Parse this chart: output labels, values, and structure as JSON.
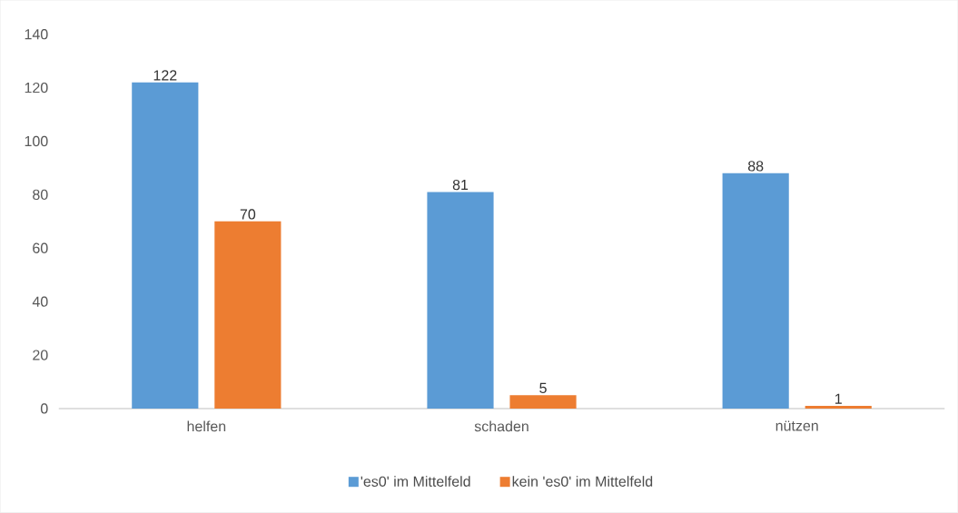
{
  "chart_data": {
    "type": "bar",
    "categories": [
      "helfen",
      "schaden",
      "nützen"
    ],
    "series": [
      {
        "name": "'es0' im Mittelfeld",
        "color": "#5b9bd5",
        "values": [
          122,
          81,
          88
        ]
      },
      {
        "name": "kein 'es0' im Mittelfeld",
        "color": "#ed7d31",
        "values": [
          70,
          5,
          1
        ]
      }
    ],
    "ylim": [
      0,
      140
    ],
    "yticks": [
      0,
      20,
      40,
      60,
      80,
      100,
      120,
      140
    ],
    "data_labels": true,
    "legend": "bottom",
    "grid": false
  }
}
